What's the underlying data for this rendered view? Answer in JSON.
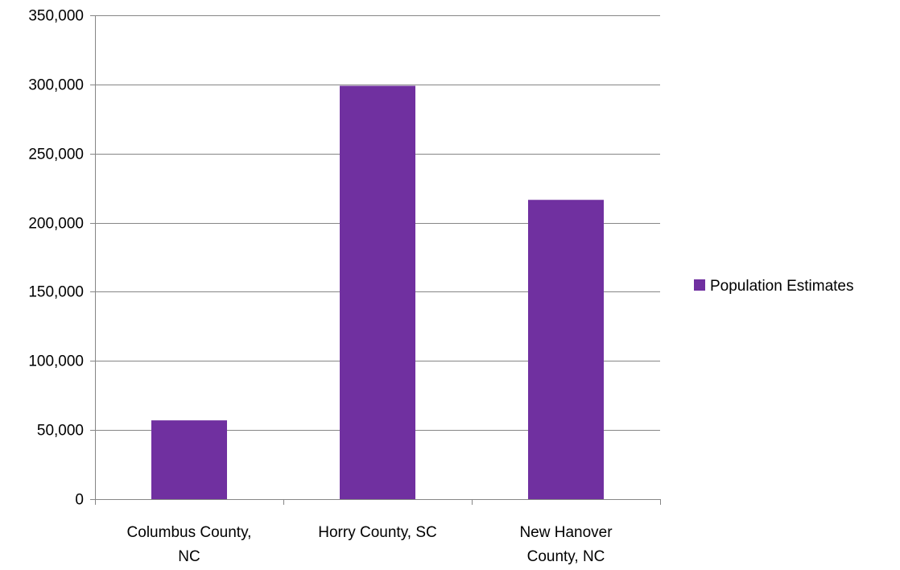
{
  "chart_data": {
    "type": "bar",
    "categories": [
      [
        "Columbus County,",
        "NC"
      ],
      [
        "Horry County, SC"
      ],
      [
        "New Hanover",
        "County, NC"
      ]
    ],
    "series": [
      {
        "name": "Population Estimates",
        "color": "#7030A0",
        "values": [
          57000,
          299000,
          216500
        ]
      }
    ],
    "ylim": [
      0,
      350000
    ],
    "yticks": [
      0,
      50000,
      100000,
      150000,
      200000,
      250000,
      300000,
      350000
    ],
    "ytick_labels": [
      "0",
      "50,000",
      "100,000",
      "150,000",
      "200,000",
      "250,000",
      "300,000",
      "350,000"
    ],
    "grid": true,
    "legend": "right",
    "title": "",
    "xlabel": "",
    "ylabel": ""
  }
}
